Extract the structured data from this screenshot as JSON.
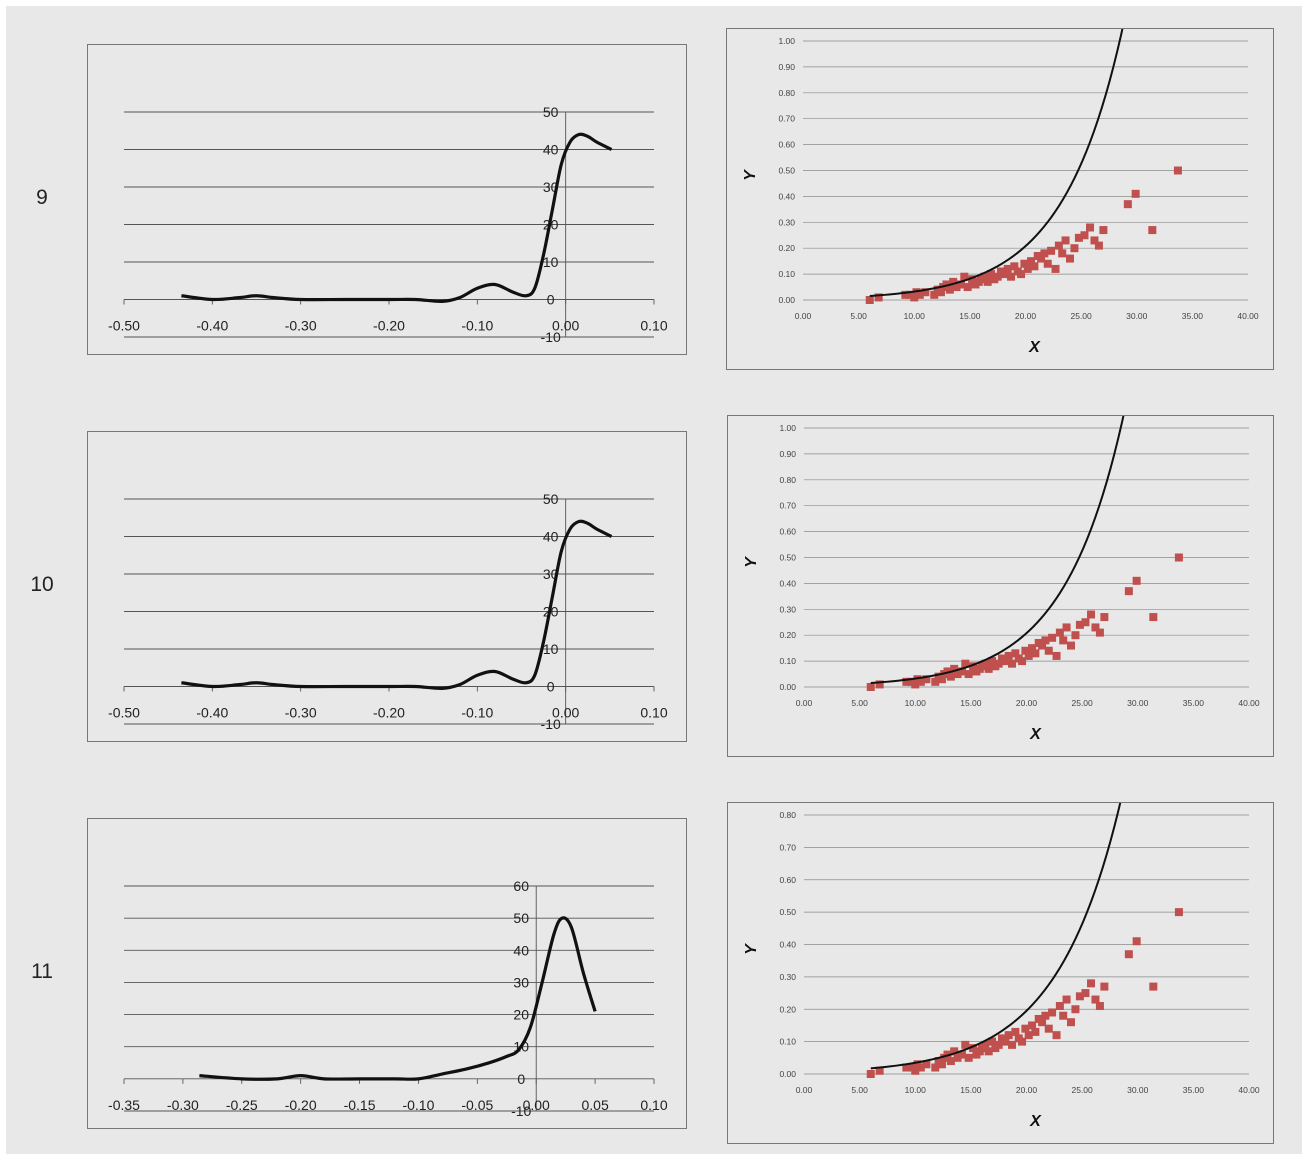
{
  "rows": [
    {
      "label": "9",
      "density": {
        "type": "line",
        "xlim": [
          -0.5,
          0.1
        ],
        "ylim": [
          -10,
          50
        ],
        "x_ticks": [
          "-0.50",
          "-0.40",
          "-0.30",
          "-0.20",
          "-0.10",
          "0.00",
          "0.10"
        ],
        "x_tick_values": [
          -0.5,
          -0.4,
          -0.3,
          -0.2,
          -0.1,
          0.0,
          0.1
        ],
        "y_ticks": [
          "-10",
          "0",
          "10",
          "20",
          "30",
          "40",
          "50"
        ],
        "y_tick_values": [
          -10,
          0,
          10,
          20,
          30,
          40,
          50
        ],
        "series": [
          {
            "color": "#111111",
            "x": [
              -0.435,
              -0.4,
              -0.37,
              -0.35,
              -0.33,
              -0.3,
              -0.25,
              -0.2,
              -0.17,
              -0.14,
              -0.12,
              -0.1,
              -0.08,
              -0.06,
              -0.045,
              -0.035,
              -0.025,
              -0.015,
              -0.005,
              0.005,
              0.015,
              0.025,
              0.035,
              0.052
            ],
            "y": [
              1,
              0,
              0.5,
              1,
              0.5,
              0,
              0,
              0,
              0,
              -0.5,
              0.5,
              3,
              4,
              2,
              1,
              3,
              12,
              24,
              36,
              42,
              44,
              43.5,
              42,
              40
            ]
          }
        ]
      },
      "scatter": {
        "type": "scatter",
        "xlim": [
          0,
          40
        ],
        "ylim": [
          0,
          1.0
        ],
        "x_ticks": [
          "0.00",
          "5.00",
          "10.00",
          "15.00",
          "20.00",
          "25.00",
          "30.00",
          "35.00",
          "40.00"
        ],
        "x_tick_values": [
          0,
          5,
          10,
          15,
          20,
          25,
          30,
          35,
          40
        ],
        "y_ticks": [
          "0.00",
          "0.10",
          "0.20",
          "0.30",
          "0.40",
          "0.50",
          "0.60",
          "0.70",
          "0.80",
          "0.90",
          "1.00"
        ],
        "y_tick_values": [
          0,
          0.1,
          0.2,
          0.3,
          0.4,
          0.5,
          0.6,
          0.7,
          0.8,
          0.9,
          1.0
        ],
        "xlabel": "X",
        "ylabel": "Y",
        "curve": {
          "a": 0.00509,
          "b": 0.1855,
          "x0": 6.0,
          "x1": 33.8,
          "color": "#111111"
        }
      }
    },
    {
      "label": "10",
      "density": {
        "type": "line",
        "xlim": [
          -0.5,
          0.1
        ],
        "ylim": [
          -10,
          50
        ],
        "x_ticks": [
          "-0.50",
          "-0.40",
          "-0.30",
          "-0.20",
          "-0.10",
          "0.00",
          "0.10"
        ],
        "x_tick_values": [
          -0.5,
          -0.4,
          -0.3,
          -0.2,
          -0.1,
          0.0,
          0.1
        ],
        "y_ticks": [
          "-10",
          "0",
          "10",
          "20",
          "30",
          "40",
          "50"
        ],
        "y_tick_values": [
          -10,
          0,
          10,
          20,
          30,
          40,
          50
        ],
        "series": [
          {
            "color": "#111111",
            "x": [
              -0.435,
              -0.4,
              -0.37,
              -0.35,
              -0.33,
              -0.3,
              -0.25,
              -0.2,
              -0.17,
              -0.14,
              -0.12,
              -0.1,
              -0.08,
              -0.06,
              -0.045,
              -0.035,
              -0.025,
              -0.015,
              -0.005,
              0.005,
              0.015,
              0.025,
              0.035,
              0.052
            ],
            "y": [
              1,
              0,
              0.5,
              1,
              0.5,
              0,
              0,
              0,
              0,
              -0.5,
              0.5,
              3,
              4,
              2,
              1,
              3,
              12,
              24,
              36,
              42,
              44,
              43.5,
              42,
              40
            ]
          }
        ]
      },
      "scatter": {
        "type": "scatter",
        "xlim": [
          0,
          40
        ],
        "ylim": [
          0,
          1.0
        ],
        "x_ticks": [
          "0.00",
          "5.00",
          "10.00",
          "15.00",
          "20.00",
          "25.00",
          "30.00",
          "35.00",
          "40.00"
        ],
        "x_tick_values": [
          0,
          5,
          10,
          15,
          20,
          25,
          30,
          35,
          40
        ],
        "y_ticks": [
          "0.00",
          "0.10",
          "0.20",
          "0.30",
          "0.40",
          "0.50",
          "0.60",
          "0.70",
          "0.80",
          "0.90",
          "1.00"
        ],
        "y_tick_values": [
          0,
          0.1,
          0.2,
          0.3,
          0.4,
          0.5,
          0.6,
          0.7,
          0.8,
          0.9,
          1.0
        ],
        "xlabel": "X",
        "ylabel": "Y",
        "curve": {
          "a": 0.00509,
          "b": 0.1855,
          "x0": 6.0,
          "x1": 33.8,
          "color": "#111111"
        }
      }
    },
    {
      "label": "11",
      "density": {
        "type": "line",
        "xlim": [
          -0.35,
          0.1
        ],
        "ylim": [
          -10,
          60
        ],
        "x_ticks": [
          "-0.35",
          "-0.30",
          "-0.25",
          "-0.20",
          "-0.15",
          "-0.10",
          "-0.05",
          "0.00",
          "0.05",
          "0.10"
        ],
        "x_tick_values": [
          -0.35,
          -0.3,
          -0.25,
          -0.2,
          -0.15,
          -0.1,
          -0.05,
          0.0,
          0.05,
          0.1
        ],
        "y_ticks": [
          "-10",
          "0",
          "10",
          "20",
          "30",
          "40",
          "50",
          "60"
        ],
        "y_tick_values": [
          -10,
          0,
          10,
          20,
          30,
          40,
          50,
          60
        ],
        "series": [
          {
            "color": "#111111",
            "x": [
              -0.286,
              -0.25,
              -0.22,
              -0.2,
              -0.18,
              -0.15,
              -0.12,
              -0.1,
              -0.08,
              -0.06,
              -0.04,
              -0.025,
              -0.015,
              -0.005,
              0.005,
              0.015,
              0.022,
              0.03,
              0.04,
              0.05
            ],
            "y": [
              1,
              0,
              0,
              1,
              0,
              0,
              0,
              0,
              1.5,
              3,
              5,
              7,
              9,
              16,
              30,
              45,
              50,
              47,
              33,
              21
            ]
          }
        ]
      },
      "scatter": {
        "type": "scatter",
        "xlim": [
          0,
          40
        ],
        "ylim": [
          0,
          0.8
        ],
        "x_ticks": [
          "0.00",
          "5.00",
          "10.00",
          "15.00",
          "20.00",
          "25.00",
          "30.00",
          "35.00",
          "40.00"
        ],
        "x_tick_values": [
          0,
          5,
          10,
          15,
          20,
          25,
          30,
          35,
          40
        ],
        "y_ticks": [
          "0.00",
          "0.10",
          "0.20",
          "0.30",
          "0.40",
          "0.50",
          "0.60",
          "0.70",
          "0.80"
        ],
        "y_tick_values": [
          0,
          0.1,
          0.2,
          0.3,
          0.4,
          0.5,
          0.6,
          0.7,
          0.8
        ],
        "xlabel": "X",
        "ylabel": "Y",
        "curve": {
          "a": 0.00616,
          "b": 0.1728,
          "x0": 6.0,
          "x1": 33.8,
          "color": "#111111"
        }
      }
    }
  ],
  "chart_data": [
    {
      "type": "line",
      "panel": "9-left",
      "xlim": [
        -0.5,
        0.1
      ],
      "ylim": [
        -10,
        50
      ]
    },
    {
      "type": "scatter",
      "panel": "9-right",
      "xlabel": "X",
      "ylabel": "Y",
      "xlim": [
        0,
        40
      ],
      "ylim": [
        0,
        1.0
      ],
      "grid": true
    },
    {
      "type": "line",
      "panel": "10-left",
      "xlim": [
        -0.5,
        0.1
      ],
      "ylim": [
        -10,
        50
      ]
    },
    {
      "type": "scatter",
      "panel": "10-right",
      "xlabel": "X",
      "ylabel": "Y",
      "xlim": [
        0,
        40
      ],
      "ylim": [
        0,
        1.0
      ],
      "grid": true
    },
    {
      "type": "line",
      "panel": "11-left",
      "xlim": [
        -0.35,
        0.1
      ],
      "ylim": [
        -10,
        60
      ]
    },
    {
      "type": "scatter",
      "panel": "11-right",
      "xlabel": "X",
      "ylabel": "Y",
      "xlim": [
        0,
        40
      ],
      "ylim": [
        0,
        0.8
      ],
      "grid": true
    }
  ],
  "scatter_points": {
    "color": "#c0504d",
    "x": [
      6.0,
      6.8,
      9.2,
      9.6,
      10.0,
      10.2,
      10.5,
      11.0,
      11.8,
      12.1,
      12.4,
      12.6,
      12.9,
      13.2,
      13.5,
      13.8,
      14.2,
      14.5,
      14.8,
      15.2,
      15.5,
      15.8,
      16.0,
      16.3,
      16.6,
      16.9,
      17.2,
      17.5,
      17.8,
      18.1,
      18.4,
      18.7,
      19.0,
      19.3,
      19.6,
      19.9,
      20.2,
      20.5,
      20.8,
      21.1,
      21.4,
      21.7,
      22.0,
      22.3,
      22.7,
      23.0,
      23.3,
      23.6,
      24.0,
      24.4,
      24.8,
      25.3,
      25.8,
      26.2,
      26.6,
      27.0,
      29.2,
      29.9,
      31.4,
      33.7
    ],
    "y": [
      0.0,
      0.01,
      0.02,
      0.02,
      0.01,
      0.03,
      0.02,
      0.03,
      0.02,
      0.04,
      0.03,
      0.05,
      0.06,
      0.04,
      0.07,
      0.05,
      0.06,
      0.09,
      0.05,
      0.08,
      0.06,
      0.07,
      0.08,
      0.09,
      0.07,
      0.1,
      0.08,
      0.09,
      0.11,
      0.1,
      0.12,
      0.09,
      0.13,
      0.11,
      0.1,
      0.14,
      0.12,
      0.15,
      0.13,
      0.17,
      0.16,
      0.18,
      0.14,
      0.19,
      0.12,
      0.21,
      0.18,
      0.23,
      0.16,
      0.2,
      0.24,
      0.25,
      0.28,
      0.23,
      0.21,
      0.27,
      0.37,
      0.41,
      0.27,
      0.5
    ]
  }
}
